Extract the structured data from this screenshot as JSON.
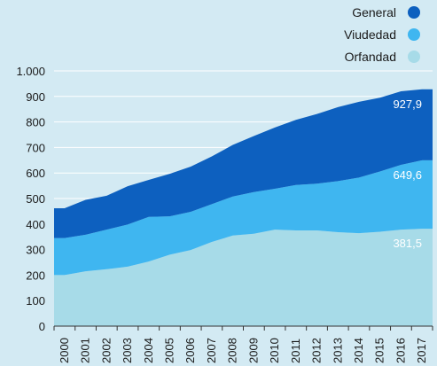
{
  "chart_data": {
    "type": "area",
    "stacked": true,
    "categories": [
      "2000",
      "2001",
      "2002",
      "2003",
      "2004",
      "2005",
      "2006",
      "2007",
      "2008",
      "2009",
      "2010",
      "2011",
      "2012",
      "2013",
      "2014",
      "2015",
      "2016",
      "2017"
    ],
    "ylim": [
      0,
      1000
    ],
    "yticks": [
      0,
      100,
      200,
      300,
      400,
      500,
      600,
      700,
      800,
      900,
      1000
    ],
    "ytick_labels": [
      "0",
      "100",
      "200",
      "300",
      "400",
      "500",
      "600",
      "700",
      "800",
      "900",
      "1.000"
    ],
    "grid": true,
    "legend_position": "top-right",
    "series": [
      {
        "name": "Orfandad",
        "color": "#a7dbe8",
        "values": [
          200,
          215,
          223,
          233,
          253,
          280,
          298,
          330,
          355,
          362,
          378,
          375,
          375,
          368,
          364,
          370,
          378,
          381.5
        ],
        "cumulative": [
          200,
          215,
          223,
          233,
          253,
          280,
          298,
          330,
          355,
          362,
          378,
          375,
          375,
          368,
          364,
          370,
          378,
          381.5
        ]
      },
      {
        "name": "Viudedad",
        "color": "#3fb6f0",
        "values": [
          145,
          143,
          155,
          165,
          175,
          150,
          150,
          148,
          153,
          163,
          160,
          178,
          183,
          200,
          218,
          236,
          254,
          268.1
        ],
        "cumulative": [
          345,
          358,
          378,
          398,
          428,
          430,
          448,
          478,
          508,
          525,
          538,
          553,
          558,
          568,
          582,
          606,
          632,
          649.6
        ]
      },
      {
        "name": "General",
        "color": "#0d60bf",
        "values": [
          117,
          137,
          133,
          150,
          145,
          167,
          177,
          187,
          202,
          220,
          240,
          255,
          273,
          290,
          297,
          289,
          288,
          278.3
        ],
        "cumulative": [
          462,
          495,
          511,
          548,
          573,
          597,
          625,
          665,
          710,
          745,
          778,
          808,
          831,
          858,
          879,
          895,
          920,
          927.9
        ]
      }
    ],
    "data_labels": [
      "381,5",
      "649,6",
      "927,9"
    ]
  },
  "legend": [
    {
      "label": "General",
      "color": "#0d60bf"
    },
    {
      "label": "Viudedad",
      "color": "#3fb6f0"
    },
    {
      "label": "Orfandad",
      "color": "#a7dbe8"
    }
  ]
}
